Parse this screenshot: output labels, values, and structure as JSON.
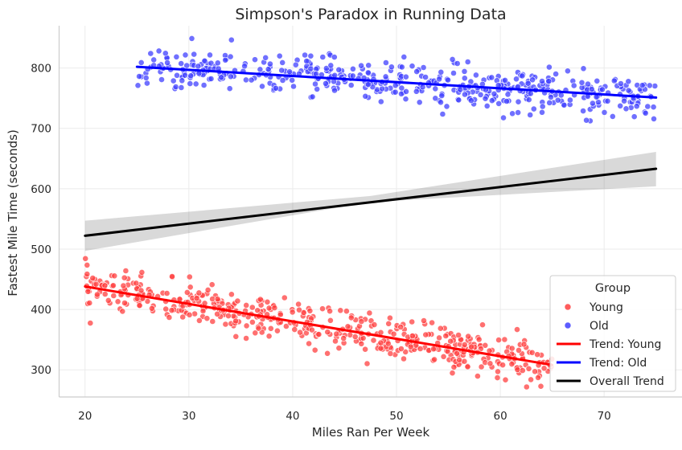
{
  "chart_data": {
    "type": "scatter",
    "title": "Simpson's Paradox in Running Data",
    "xlabel": "Miles Ran Per Week",
    "ylabel": "Fastest Mile Time (seconds)",
    "xlim": [
      17.5,
      77.5
    ],
    "ylim": [
      255,
      870
    ],
    "x_ticks": [
      20,
      30,
      40,
      50,
      60,
      70
    ],
    "y_ticks": [
      300,
      400,
      500,
      600,
      700,
      800
    ],
    "grid": true,
    "legend": {
      "title": "Group",
      "placement": "lower-right",
      "entries": [
        {
          "label": "Young",
          "marker": "point",
          "color": "#ff4040"
        },
        {
          "label": "Old",
          "marker": "point",
          "color": "#4040ff"
        },
        {
          "label": "Trend: Young",
          "marker": "line",
          "color": "#ff0000"
        },
        {
          "label": "Trend: Old",
          "marker": "line",
          "color": "#0000ff"
        },
        {
          "label": "Overall Trend",
          "marker": "line",
          "color": "#000000"
        }
      ]
    },
    "series": [
      {
        "name": "Young",
        "kind": "scatter",
        "color": "#ff4040",
        "x_range": [
          20,
          65
        ],
        "trend": [
          [
            20,
            438
          ],
          [
            65,
            308
          ]
        ],
        "spread": 17,
        "count": 500
      },
      {
        "name": "Old",
        "kind": "scatter",
        "color": "#4040ff",
        "x_range": [
          25,
          75
        ],
        "trend": [
          [
            25,
            802
          ],
          [
            75,
            751
          ]
        ],
        "spread": 17,
        "count": 500
      },
      {
        "name": "Trend: Young",
        "kind": "line",
        "color": "#ff0000",
        "points": [
          [
            20,
            438
          ],
          [
            65,
            308
          ]
        ]
      },
      {
        "name": "Trend: Old",
        "kind": "line",
        "color": "#0000ff",
        "points": [
          [
            25,
            802
          ],
          [
            75,
            751
          ]
        ]
      },
      {
        "name": "Overall Trend",
        "kind": "line",
        "color": "#000000",
        "points": [
          [
            20,
            522
          ],
          [
            75,
            633
          ]
        ],
        "ci_band": {
          "x": [
            20,
            47.5,
            75
          ],
          "lower": [
            497,
            578,
            604
          ],
          "upper": [
            547,
            588,
            661
          ]
        }
      }
    ]
  }
}
